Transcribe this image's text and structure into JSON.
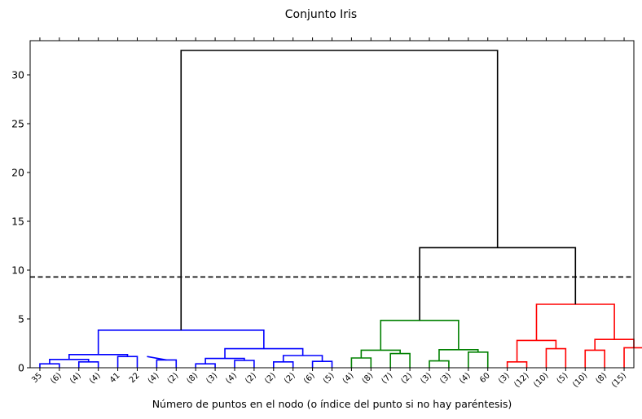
{
  "chart_data": {
    "type": "dendrogram",
    "title": "Conjunto Iris",
    "xlabel": "Número de puntos en el nodo (o índice del punto si no hay paréntesis)",
    "ylabel": "",
    "ylim": [
      0,
      33.5
    ],
    "yticks": [
      0,
      5,
      10,
      15,
      20,
      25,
      30
    ],
    "grid": false,
    "cut_line": {
      "y": 9.3,
      "style": "dashed",
      "color": "#000000"
    },
    "leaves": [
      "35",
      "(6)",
      "(4)",
      "(4)",
      "41",
      "22",
      "(4)",
      "(2)",
      "(8)",
      "(3)",
      "(4)",
      "(2)",
      "(2)",
      "(2)",
      "(6)",
      "(5)",
      "(4)",
      "(8)",
      "(7)",
      "(2)",
      "(3)",
      "(3)",
      "(4)",
      "60",
      "(3)",
      "(12)",
      "(10)",
      "(5)",
      "(10)",
      "(8)",
      "(15)"
    ],
    "colors": {
      "blue": "#0000ff",
      "green": "#008000",
      "red": "#ff0000",
      "black": "#000000"
    },
    "links": [
      {
        "x": [
          5,
          5,
          15,
          15
        ],
        "y": [
          0,
          0.4,
          0.4,
          0
        ],
        "color": "blue"
      },
      {
        "x": [
          25,
          25,
          35,
          35
        ],
        "y": [
          0,
          0.6,
          0.6,
          0
        ],
        "color": "blue"
      },
      {
        "x": [
          10,
          10,
          30,
          30
        ],
        "y": [
          0.4,
          0.85,
          0.85,
          0.6
        ],
        "color": "blue"
      },
      {
        "x": [
          45,
          45,
          55,
          55
        ],
        "y": [
          0,
          1.15,
          1.15,
          0
        ],
        "color": "blue"
      },
      {
        "x": [
          20,
          20,
          50,
          50
        ],
        "y": [
          0.85,
          1.35,
          1.35,
          1.15
        ],
        "color": "blue"
      },
      {
        "x": [
          65,
          65,
          75,
          75
        ],
        "y": [
          0,
          0.8,
          0.8,
          0
        ],
        "color": "blue"
      },
      {
        "x": [
          60,
          60,
          70,
          70
        ],
        "y": [
          1.15,
          1.15,
          0.8,
          0.8
        ],
        "color": "blue"
      },
      {
        "x": [
          85,
          85,
          95,
          95
        ],
        "y": [
          0,
          0.4,
          0.4,
          0
        ],
        "color": "blue"
      },
      {
        "x": [
          105,
          105,
          115,
          115
        ],
        "y": [
          0,
          0.75,
          0.75,
          0
        ],
        "color": "blue"
      },
      {
        "x": [
          90,
          90,
          110,
          110
        ],
        "y": [
          0.4,
          0.95,
          0.95,
          0.75
        ],
        "color": "blue"
      },
      {
        "x": [
          125,
          125,
          135,
          135
        ],
        "y": [
          0,
          0.6,
          0.6,
          0
        ],
        "color": "blue"
      },
      {
        "x": [
          145,
          145,
          155,
          155
        ],
        "y": [
          0,
          0.65,
          0.65,
          0
        ],
        "color": "blue"
      },
      {
        "x": [
          130,
          130,
          150,
          150
        ],
        "y": [
          0.6,
          1.25,
          1.25,
          0.65
        ],
        "color": "blue"
      },
      {
        "x": [
          100,
          100,
          140,
          140
        ],
        "y": [
          0.95,
          1.95,
          1.95,
          1.25
        ],
        "color": "blue"
      },
      {
        "x": [
          35,
          35,
          120,
          120
        ],
        "y": [
          1.35,
          3.85,
          3.85,
          1.95
        ],
        "color": "blue"
      },
      {
        "x": [
          165,
          165,
          175,
          175
        ],
        "y": [
          0,
          1.0,
          1.0,
          0
        ],
        "color": "green"
      },
      {
        "x": [
          185,
          185,
          195,
          195
        ],
        "y": [
          0,
          1.45,
          1.45,
          0
        ],
        "color": "green"
      },
      {
        "x": [
          170,
          170,
          190,
          190
        ],
        "y": [
          1.0,
          1.8,
          1.8,
          1.45
        ],
        "color": "green"
      },
      {
        "x": [
          205,
          205,
          215,
          215
        ],
        "y": [
          0,
          0.7,
          0.7,
          0
        ],
        "color": "green"
      },
      {
        "x": [
          225,
          225,
          235,
          235
        ],
        "y": [
          0,
          1.6,
          1.6,
          0
        ],
        "color": "green"
      },
      {
        "x": [
          210,
          210,
          230,
          230
        ],
        "y": [
          0.7,
          1.85,
          1.85,
          1.6
        ],
        "color": "green"
      },
      {
        "x": [
          180,
          180,
          220,
          220
        ],
        "y": [
          1.8,
          4.85,
          4.85,
          1.85
        ],
        "color": "green"
      },
      {
        "x": [
          245,
          245,
          255,
          255
        ],
        "y": [
          0,
          0.6,
          0.6,
          0
        ],
        "color": "red"
      },
      {
        "x": [
          265,
          265,
          275,
          275
        ],
        "y": [
          0,
          1.95,
          1.95,
          0
        ],
        "color": "red"
      },
      {
        "x": [
          250,
          250,
          270,
          270
        ],
        "y": [
          0.6,
          2.8,
          2.8,
          1.95
        ],
        "color": "red"
      },
      {
        "x": [
          285,
          285,
          295,
          295
        ],
        "y": [
          0,
          1.8,
          1.8,
          0
        ],
        "color": "red"
      },
      {
        "x": [
          305,
          305,
          315,
          315
        ],
        "y": [
          0,
          2.05,
          2.05,
          0
        ],
        "color": "red"
      },
      {
        "x": [
          290,
          290,
          310,
          310
        ],
        "y": [
          1.8,
          2.9,
          2.9,
          2.05
        ],
        "color": "red"
      },
      {
        "x": [
          260,
          260,
          300,
          300
        ],
        "y": [
          2.8,
          6.5,
          6.5,
          2.9
        ],
        "color": "red"
      },
      {
        "x": [
          200,
          200,
          280,
          280
        ],
        "y": [
          4.85,
          12.3,
          12.3,
          6.5
        ],
        "color": "black"
      },
      {
        "x": [
          77.5,
          77.5,
          240,
          240
        ],
        "y": [
          3.85,
          32.5,
          32.5,
          12.3
        ],
        "color": "black"
      }
    ]
  }
}
